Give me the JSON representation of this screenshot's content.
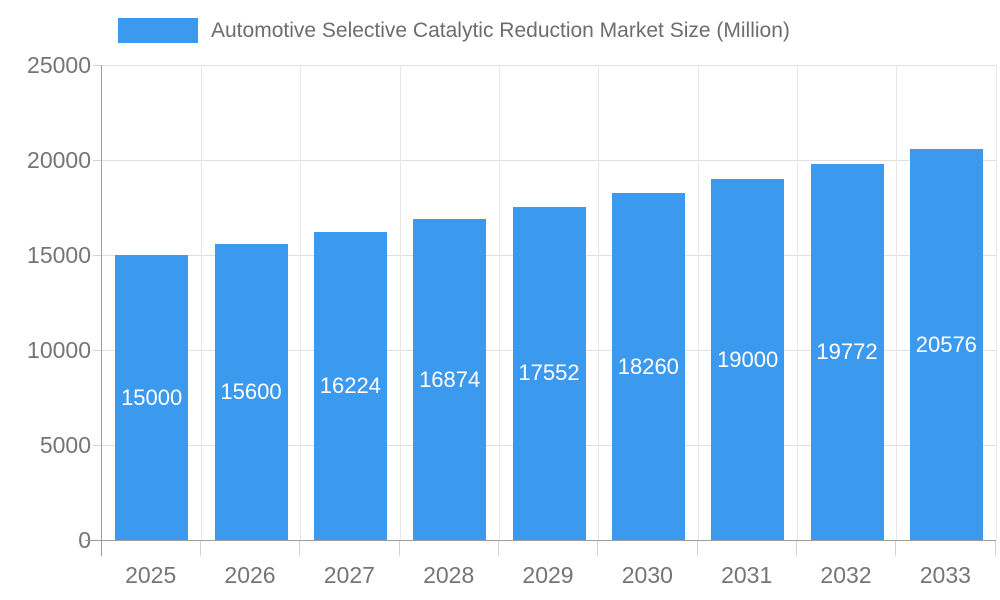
{
  "legend": {
    "label": "Automotive Selective Catalytic Reduction Market Size (Million)",
    "swatch_color": "#3b99ee"
  },
  "chart_data": {
    "type": "bar",
    "title": "Automotive Selective Catalytic Reduction Market Size (Million)",
    "categories": [
      "2025",
      "2026",
      "2027",
      "2028",
      "2029",
      "2030",
      "2031",
      "2032",
      "2033"
    ],
    "values": [
      15000,
      15600,
      16224,
      16874,
      17552,
      18260,
      19000,
      19772,
      20576
    ],
    "value_labels": [
      "15000",
      "15600",
      "16224",
      "16874",
      "17552",
      "18260",
      "19000",
      "19772",
      "20576"
    ],
    "xlabel": "",
    "ylabel": "",
    "ylim": [
      0,
      25000
    ],
    "y_ticks": [
      0,
      5000,
      10000,
      15000,
      20000,
      25000
    ],
    "y_tick_labels": [
      "0",
      "5000",
      "10000",
      "15000",
      "20000",
      "25000"
    ],
    "grid": true,
    "legend_position": "top",
    "bar_color": "#3b99ee",
    "value_label_color": "#ffffff",
    "axis_color": "#9e9e9e",
    "grid_color": "#e0e0e0",
    "tick_label_color": "#757575"
  }
}
